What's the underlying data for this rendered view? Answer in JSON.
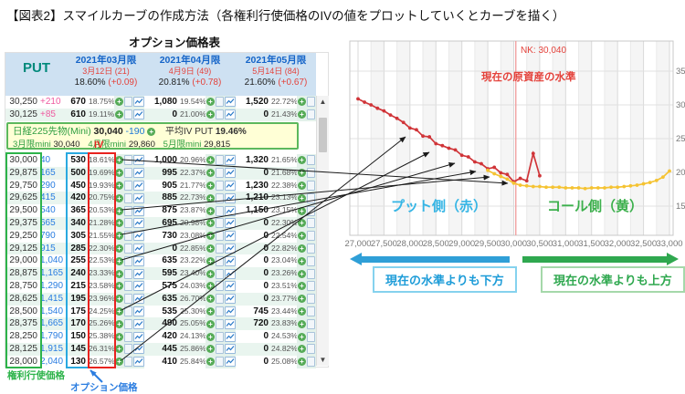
{
  "title": "【図表2】スマイルカーブの作成方法（各権利行使価格のIVの値をプロットしていくとカーブを描く）",
  "table": {
    "caption": "オプション価格表",
    "put_label": "PUT",
    "iv_column_label": "IV",
    "months": [
      {
        "name": "2021年03月限",
        "date": "3月12日 (21)",
        "iv": "18.60%",
        "iv_change": "(+0.09)"
      },
      {
        "name": "2021年04月限",
        "date": "4月9日 (49)",
        "iv": "20.81%",
        "iv_change": "(+0.78)"
      },
      {
        "name": "2021年05月限",
        "date": "5月14日 (84)",
        "iv": "21.60%",
        "iv_change": "(+0.67)"
      }
    ],
    "top_rows": [
      {
        "strike": "30,250",
        "diff": "+210",
        "m": [
          {
            "p": "670",
            "iv": "18.75%"
          },
          {
            "p": "1,080",
            "iv": "19.54%"
          },
          {
            "p": "1,520",
            "iv": "22.72%"
          }
        ]
      },
      {
        "strike": "30,125",
        "diff": "+85",
        "m": [
          {
            "p": "610",
            "iv": "19.11%"
          },
          {
            "p": "0",
            "iv": "21.00%"
          },
          {
            "p": "0",
            "iv": "21.43%"
          }
        ]
      }
    ],
    "info_box": {
      "line1_label": "日経225先物(Mini)",
      "line1_value": "30,040",
      "line1_change": "-190",
      "line1_avg_label": "平均IV PUT",
      "line1_avg_value": "19.46%",
      "line2": [
        {
          "label": "3月限mini",
          "value": "30,040"
        },
        {
          "label": "4月限mini",
          "value": "29,860"
        },
        {
          "label": "5月限mini",
          "value": "29,815"
        }
      ]
    },
    "rows": [
      {
        "strike": "30,000",
        "diff": "40",
        "m": [
          {
            "p": "530",
            "iv": "18.61%"
          },
          {
            "p": "1,000",
            "iv": "20.96%"
          },
          {
            "p": "1,320",
            "iv": "21.65%"
          }
        ]
      },
      {
        "strike": "29,875",
        "diff": "165",
        "m": [
          {
            "p": "500",
            "iv": "19.69%"
          },
          {
            "p": "995",
            "iv": "22.37%"
          },
          {
            "p": "0",
            "iv": "21.68%"
          }
        ]
      },
      {
        "strike": "29,750",
        "diff": "290",
        "m": [
          {
            "p": "450",
            "iv": "19.93%"
          },
          {
            "p": "905",
            "iv": "21.77%"
          },
          {
            "p": "1,230",
            "iv": "22.38%"
          }
        ]
      },
      {
        "strike": "29,625",
        "diff": "415",
        "m": [
          {
            "p": "420",
            "iv": "20.75%"
          },
          {
            "p": "885",
            "iv": "22.73%"
          },
          {
            "p": "1,210",
            "iv": "23.13%"
          }
        ]
      },
      {
        "strike": "29,500",
        "diff": "540",
        "m": [
          {
            "p": "365",
            "iv": "20.53%"
          },
          {
            "p": "875",
            "iv": "23.87%"
          },
          {
            "p": "1,150",
            "iv": "23.15%"
          }
        ]
      },
      {
        "strike": "29,375",
        "diff": "665",
        "m": [
          {
            "p": "340",
            "iv": "21.28%"
          },
          {
            "p": "695",
            "iv": "20.98%"
          },
          {
            "p": "0",
            "iv": "22.30%"
          }
        ]
      },
      {
        "strike": "29,250",
        "diff": "790",
        "m": [
          {
            "p": "305",
            "iv": "21.55%"
          },
          {
            "p": "730",
            "iv": "23.08%"
          },
          {
            "p": "0",
            "iv": "22.54%"
          }
        ]
      },
      {
        "strike": "29,125",
        "diff": "915",
        "m": [
          {
            "p": "285",
            "iv": "22.30%"
          },
          {
            "p": "0",
            "iv": "22.85%"
          },
          {
            "p": "0",
            "iv": "22.82%"
          }
        ]
      },
      {
        "strike": "29,000",
        "diff": "1,040",
        "m": [
          {
            "p": "255",
            "iv": "22.53%"
          },
          {
            "p": "635",
            "iv": "23.22%"
          },
          {
            "p": "0",
            "iv": "23.04%"
          }
        ]
      },
      {
        "strike": "28,875",
        "diff": "1,165",
        "m": [
          {
            "p": "240",
            "iv": "23.33%"
          },
          {
            "p": "595",
            "iv": "23.40%"
          },
          {
            "p": "0",
            "iv": "23.26%"
          }
        ]
      },
      {
        "strike": "28,750",
        "diff": "1,290",
        "m": [
          {
            "p": "215",
            "iv": "23.58%"
          },
          {
            "p": "575",
            "iv": "24.03%"
          },
          {
            "p": "0",
            "iv": "23.51%"
          }
        ]
      },
      {
        "strike": "28,625",
        "diff": "1,415",
        "m": [
          {
            "p": "195",
            "iv": "23.96%"
          },
          {
            "p": "635",
            "iv": "26.70%"
          },
          {
            "p": "0",
            "iv": "23.77%"
          }
        ]
      },
      {
        "strike": "28,500",
        "diff": "1,540",
        "m": [
          {
            "p": "175",
            "iv": "24.25%"
          },
          {
            "p": "535",
            "iv": "25.30%"
          },
          {
            "p": "745",
            "iv": "23.44%"
          }
        ]
      },
      {
        "strike": "28,375",
        "diff": "1,665",
        "m": [
          {
            "p": "170",
            "iv": "25.26%"
          },
          {
            "p": "490",
            "iv": "25.05%"
          },
          {
            "p": "720",
            "iv": "23.83%"
          }
        ]
      },
      {
        "strike": "28,250",
        "diff": "1,790",
        "m": [
          {
            "p": "150",
            "iv": "25.38%"
          },
          {
            "p": "420",
            "iv": "24.13%"
          },
          {
            "p": "0",
            "iv": "24.53%"
          }
        ]
      },
      {
        "strike": "28,125",
        "diff": "1,915",
        "m": [
          {
            "p": "145",
            "iv": "26.31%"
          },
          {
            "p": "445",
            "iv": "25.86%"
          },
          {
            "p": "0",
            "iv": "24.82%"
          }
        ]
      },
      {
        "strike": "28,000",
        "diff": "2,040",
        "m": [
          {
            "p": "130",
            "iv": "26.57%"
          },
          {
            "p": "410",
            "iv": "25.84%"
          },
          {
            "p": "0",
            "iv": "25.08%"
          }
        ]
      }
    ],
    "legend": {
      "strike": "権利行使価格",
      "price": "オプション価格"
    }
  },
  "chart": {
    "nk_label": "NK: 30,040",
    "underlying_label": "現在の原資産の水準",
    "put_side_label": "プット側（赤）",
    "call_side_label": "コール側（黄）",
    "below_label": "現在の水準よりも下方",
    "above_label": "現在の水準よりも上方"
  },
  "chart_data": {
    "type": "line",
    "xlim": [
      27000,
      33000
    ],
    "ylim": [
      11,
      39.5
    ],
    "x_ticks": [
      27000,
      27500,
      28000,
      28500,
      29000,
      29500,
      30000,
      30500,
      31000,
      31500,
      32000,
      32500,
      33000
    ],
    "x_tick_labels": [
      "27,000",
      "27,500",
      "28,000",
      "28,500",
      "29,000",
      "29,500",
      "30,000",
      "30,500",
      "31,000",
      "31,500",
      "32,000",
      "32,500",
      "33,000"
    ],
    "y_ticks": [
      15,
      20,
      25,
      30,
      35
    ],
    "grid": true,
    "vline": {
      "x": 30040,
      "label": "NK: 30,040",
      "color": "#f09a9a"
    },
    "series": [
      {
        "name": "プット側（赤）",
        "color": "#d03438",
        "x": [
          27000,
          27125,
          27250,
          27375,
          27500,
          27625,
          27750,
          27875,
          28000,
          28125,
          28250,
          28375,
          28500,
          28625,
          28750,
          28875,
          29000,
          29125,
          29250,
          29375,
          29500,
          29625,
          29750,
          29875,
          30000,
          30125,
          30250,
          30375,
          30500
        ],
        "y": [
          30.9,
          30.4,
          30.0,
          29.5,
          29.1,
          28.5,
          28.0,
          27.4,
          26.57,
          26.31,
          25.38,
          25.26,
          24.25,
          23.96,
          23.58,
          23.33,
          22.53,
          22.3,
          21.55,
          21.28,
          20.53,
          20.75,
          19.93,
          19.69,
          18.61,
          19.11,
          18.75,
          22.8,
          19.5
        ]
      },
      {
        "name": "コール側（黄）",
        "color": "#f5c332",
        "x": [
          29500,
          29625,
          29750,
          29875,
          30000,
          30125,
          30250,
          30375,
          30500,
          30625,
          30750,
          30875,
          31000,
          31125,
          31250,
          31375,
          31500,
          31625,
          31750,
          31875,
          32000,
          32125,
          32250,
          32375,
          32500,
          32625,
          32750,
          32875,
          33000
        ],
        "y": [
          20.3,
          19.8,
          19.4,
          19.0,
          18.4,
          18.1,
          18.0,
          17.9,
          17.9,
          17.8,
          17.8,
          17.8,
          17.7,
          17.7,
          17.7,
          17.6,
          17.7,
          17.7,
          17.7,
          17.8,
          17.8,
          17.9,
          18.0,
          18.1,
          18.3,
          18.5,
          18.8,
          19.3,
          20.2
        ]
      }
    ]
  }
}
